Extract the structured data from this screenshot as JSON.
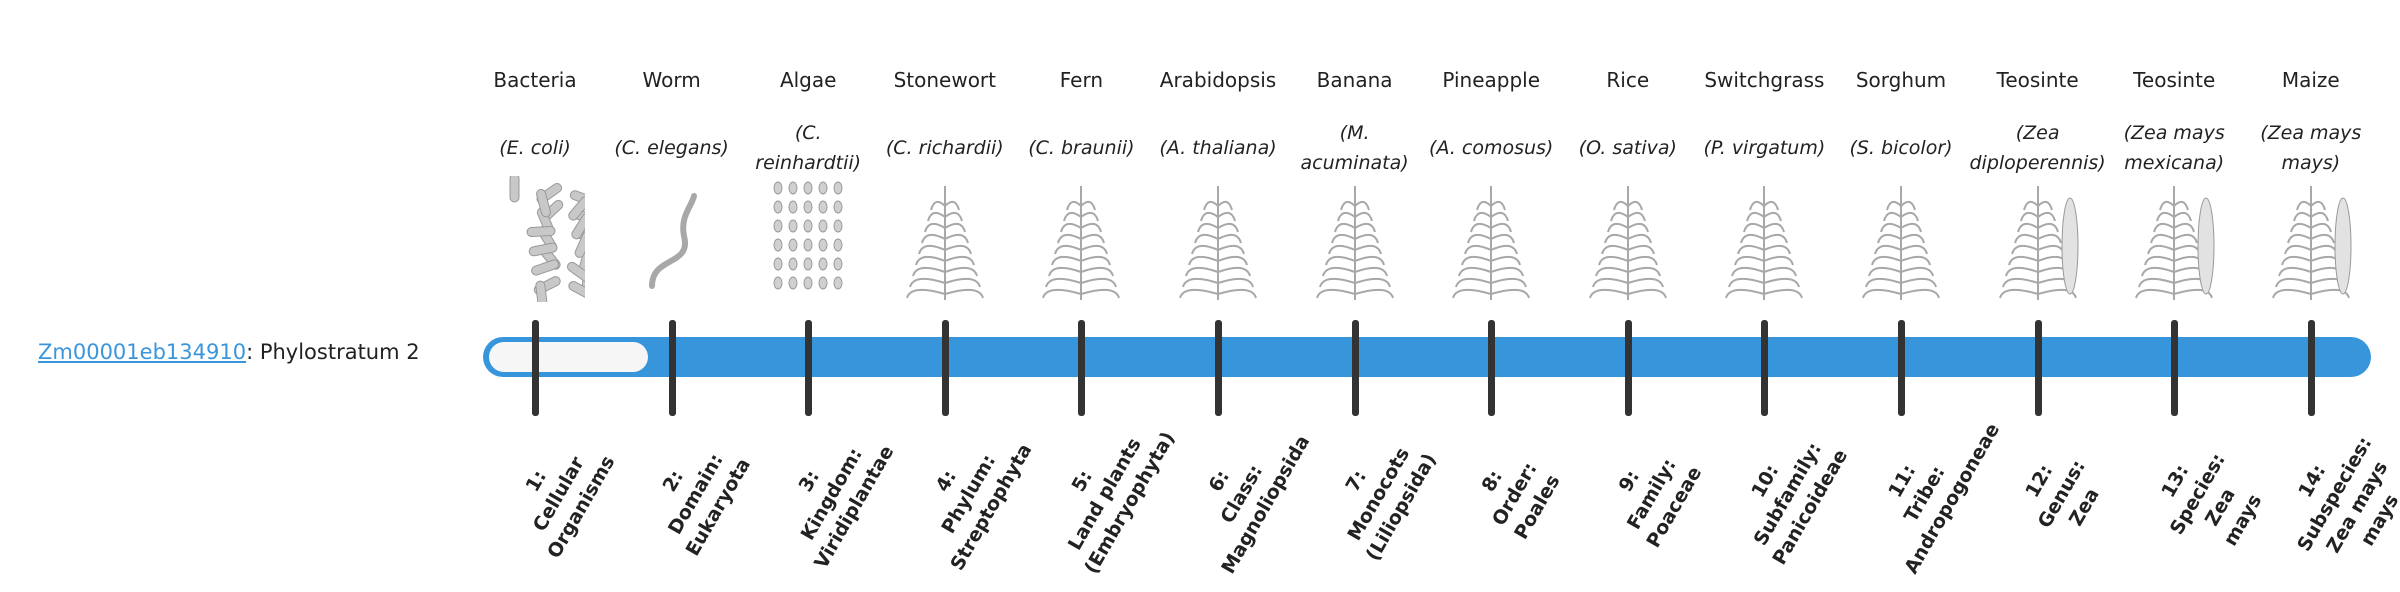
{
  "gene": {
    "id": "Zm00001eb134910",
    "suffix": ": Phylostratum 2"
  },
  "bar_color": "#3796db",
  "phylostratum_value": 2,
  "strata": [
    {
      "common": "Bacteria",
      "sci": "(E. coli)",
      "rank": "1:\nCellular\nOrganisms",
      "icon": "bacteria-icon"
    },
    {
      "common": "Worm",
      "sci": "(C. elegans)",
      "rank": "2:\nDomain:\nEukaryota",
      "icon": "worm-icon"
    },
    {
      "common": "Algae",
      "sci": "(C. reinhardtii)",
      "rank": "3:\nKingdom:\nViridiplantae",
      "icon": "algae-icon"
    },
    {
      "common": "Stonewort",
      "sci": "(C. richardii)",
      "rank": "4:\nPhylum:\nStreptophyta",
      "icon": "stonewort-icon"
    },
    {
      "common": "Fern",
      "sci": "(C. braunii)",
      "rank": "5:\nLand plants\n(Embryophyta)",
      "icon": "fern-icon"
    },
    {
      "common": "Arabidopsis",
      "sci": "(A. thaliana)",
      "rank": "6:\nClass:\nMagnoliopsida",
      "icon": "arabidopsis-icon"
    },
    {
      "common": "Banana",
      "sci": "(M. acuminata)",
      "rank": "7:\nMonocots\n(Liliopsida)",
      "icon": "banana-icon"
    },
    {
      "common": "Pineapple",
      "sci": "(A. comosus)",
      "rank": "8:\nOrder:\nPoales",
      "icon": "pineapple-icon"
    },
    {
      "common": "Rice",
      "sci": "(O. sativa)",
      "rank": "9:\nFamily:\nPoaceae",
      "icon": "rice-icon"
    },
    {
      "common": "Switchgrass",
      "sci": "(P. virgatum)",
      "rank": "10:\nSubfamily:\nPanicoideae",
      "icon": "switchgrass-icon"
    },
    {
      "common": "Sorghum",
      "sci": "(S. bicolor)",
      "rank": "11:\nTribe:\nAndropogoneae",
      "icon": "sorghum-icon"
    },
    {
      "common": "Teosinte",
      "sci": "(Zea diploperennis)",
      "rank": "12:\nGenus:\nZea",
      "icon": "teosinte-icon"
    },
    {
      "common": "Teosinte",
      "sci": "(Zea mays mexicana)",
      "rank": "13:\nSpecies:\nZea\nmays",
      "icon": "teosinte-mexicana-icon"
    },
    {
      "common": "Maize",
      "sci": "(Zea mays mays)",
      "rank": "14:\nSubspecies:\nZea mays\nmays",
      "icon": "maize-icon"
    }
  ]
}
